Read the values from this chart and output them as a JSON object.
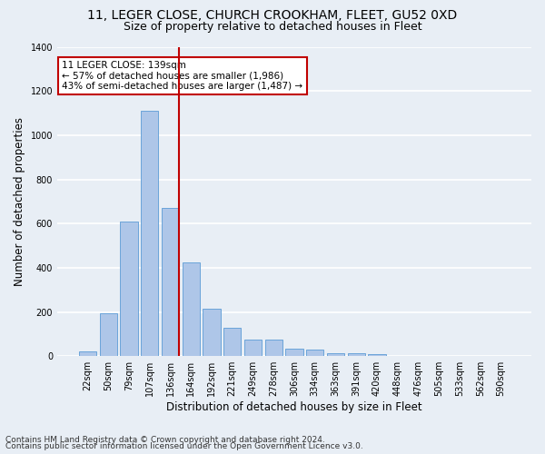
{
  "title1": "11, LEGER CLOSE, CHURCH CROOKHAM, FLEET, GU52 0XD",
  "title2": "Size of property relative to detached houses in Fleet",
  "xlabel": "Distribution of detached houses by size in Fleet",
  "ylabel": "Number of detached properties",
  "categories": [
    "22sqm",
    "50sqm",
    "79sqm",
    "107sqm",
    "136sqm",
    "164sqm",
    "192sqm",
    "221sqm",
    "249sqm",
    "278sqm",
    "306sqm",
    "334sqm",
    "363sqm",
    "391sqm",
    "420sqm",
    "448sqm",
    "476sqm",
    "505sqm",
    "533sqm",
    "562sqm",
    "590sqm"
  ],
  "values": [
    20,
    195,
    610,
    1110,
    670,
    425,
    215,
    130,
    75,
    75,
    35,
    30,
    15,
    12,
    10,
    0,
    0,
    0,
    0,
    0,
    0
  ],
  "bar_color": "#aec6e8",
  "bar_edgecolor": "#5b9bd5",
  "highlight_index": 4,
  "highlight_color": "#c00000",
  "annotation_line1": "11 LEGER CLOSE: 139sqm",
  "annotation_line2": "← 57% of detached houses are smaller (1,986)",
  "annotation_line3": "43% of semi-detached houses are larger (1,487) →",
  "annotation_box_color": "#ffffff",
  "annotation_box_edgecolor": "#c00000",
  "ylim": [
    0,
    1400
  ],
  "yticks": [
    0,
    200,
    400,
    600,
    800,
    1000,
    1200,
    1400
  ],
  "background_color": "#e8eef5",
  "grid_color": "#ffffff",
  "footer1": "Contains HM Land Registry data © Crown copyright and database right 2024.",
  "footer2": "Contains public sector information licensed under the Open Government Licence v3.0.",
  "title1_fontsize": 10,
  "title2_fontsize": 9,
  "xlabel_fontsize": 8.5,
  "ylabel_fontsize": 8.5,
  "tick_fontsize": 7,
  "annotation_fontsize": 7.5,
  "footer_fontsize": 6.5
}
